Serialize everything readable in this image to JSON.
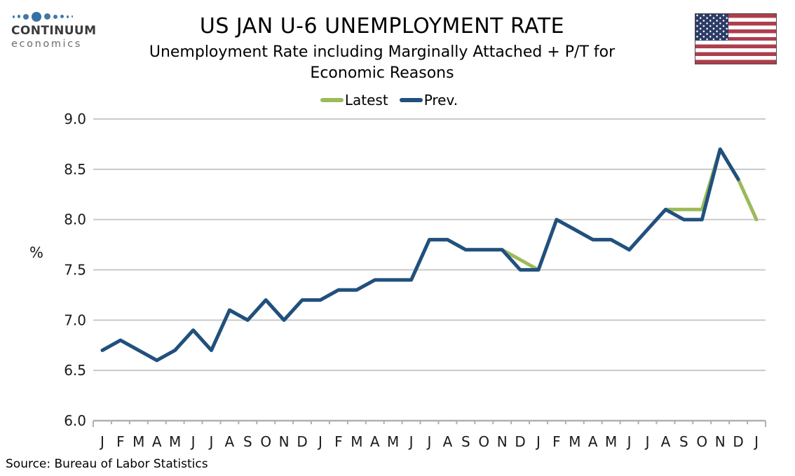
{
  "logo": {
    "name": "CONTINUUM",
    "tagline": "economics"
  },
  "source": "Source: Bureau of Labor Statistics",
  "colors": {
    "grid": "#CACACA",
    "axis": "#B0B0B0",
    "latest": "#9BBB59",
    "prev": "#21507F",
    "text": "#1a1a1a"
  },
  "chart_data": {
    "type": "line",
    "title": "US JAN U-6 UNEMPLOYMENT RATE",
    "subtitle": "Unemployment Rate including Marginally Attached + P/T for Economic Reasons",
    "ylabel": "%",
    "ylim": [
      6.0,
      9.0
    ],
    "yticks": [
      6.0,
      6.5,
      7.0,
      7.5,
      8.0,
      8.5,
      9.0
    ],
    "grid": true,
    "legend_position": "top-center",
    "x_labels": [
      "J",
      "F",
      "M",
      "A",
      "M",
      "J",
      "J",
      "A",
      "S",
      "O",
      "N",
      "D",
      "J",
      "F",
      "M",
      "A",
      "M",
      "J",
      "J",
      "A",
      "S",
      "O",
      "N",
      "D",
      "J",
      "F",
      "M",
      "A",
      "M",
      "J",
      "J",
      "A",
      "S",
      "O",
      "N",
      "D",
      "J"
    ],
    "series": [
      {
        "name": "Latest",
        "color": "#9BBB59",
        "values": [
          6.7,
          6.8,
          6.7,
          6.6,
          6.7,
          6.9,
          6.7,
          7.1,
          7.0,
          7.2,
          7.0,
          7.2,
          7.2,
          7.3,
          7.3,
          7.4,
          7.4,
          7.4,
          7.8,
          7.8,
          7.7,
          7.7,
          7.7,
          7.6,
          7.5,
          8.0,
          7.9,
          7.8,
          7.8,
          7.7,
          7.9,
          8.1,
          8.1,
          8.1,
          8.7,
          8.4,
          8.0
        ]
      },
      {
        "name": "Prev.",
        "color": "#21507F",
        "values": [
          6.7,
          6.8,
          6.7,
          6.6,
          6.7,
          6.9,
          6.7,
          7.1,
          7.0,
          7.2,
          7.0,
          7.2,
          7.2,
          7.3,
          7.3,
          7.4,
          7.4,
          7.4,
          7.8,
          7.8,
          7.7,
          7.7,
          7.7,
          7.5,
          7.5,
          8.0,
          7.9,
          7.8,
          7.8,
          7.7,
          7.9,
          8.1,
          8.0,
          8.0,
          8.7,
          8.4,
          null
        ]
      }
    ]
  }
}
